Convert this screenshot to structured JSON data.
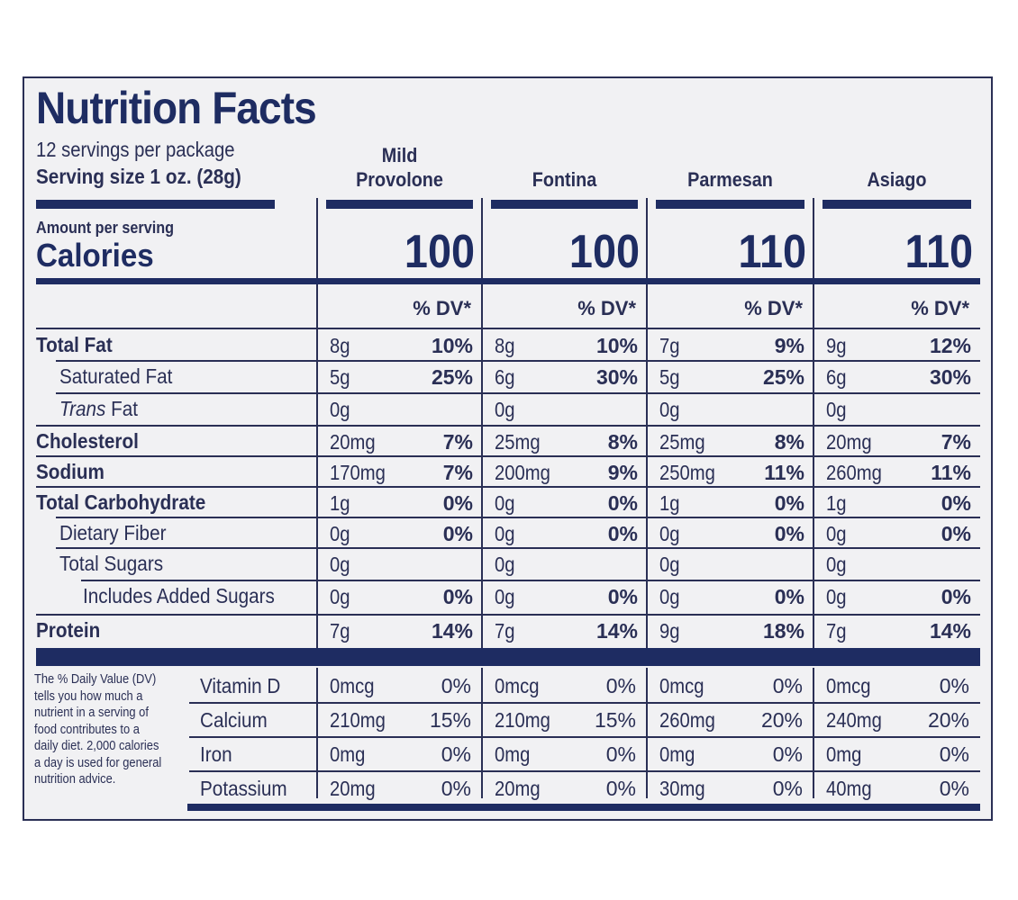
{
  "label": {
    "title": "Nutrition Facts",
    "servings_per_package": "12 servings per package",
    "serving_size": "Serving size 1 oz. (28g)",
    "amount_per_serving": "Amount per serving",
    "calories_label": "Calories",
    "dv_header": "% DV*",
    "colors": {
      "ink": "#1e2c62",
      "background": "#f1f1f3"
    }
  },
  "products": [
    {
      "name_line1": "Mild",
      "name_line2": "Provolone",
      "calories": "100"
    },
    {
      "name_line1": "",
      "name_line2": "Fontina",
      "calories": "100"
    },
    {
      "name_line1": "",
      "name_line2": "Parmesan",
      "calories": "110"
    },
    {
      "name_line1": "",
      "name_line2": "Asiago",
      "calories": "110"
    }
  ],
  "nutrients": [
    {
      "label": "Total Fat",
      "italic_prefix": "",
      "values": [
        [
          "8g",
          "10%"
        ],
        [
          "8g",
          "10%"
        ],
        [
          "7g",
          "9%"
        ],
        [
          "9g",
          "12%"
        ]
      ]
    },
    {
      "label": "Saturated Fat",
      "italic_prefix": "",
      "values": [
        [
          "5g",
          "25%"
        ],
        [
          "6g",
          "30%"
        ],
        [
          "5g",
          "25%"
        ],
        [
          "6g",
          "30%"
        ]
      ]
    },
    {
      "label": " Fat",
      "italic_prefix": "Trans",
      "values": [
        [
          "0g",
          ""
        ],
        [
          "0g",
          ""
        ],
        [
          "0g",
          ""
        ],
        [
          "0g",
          ""
        ]
      ]
    },
    {
      "label": "Cholesterol",
      "italic_prefix": "",
      "values": [
        [
          "20mg",
          "7%"
        ],
        [
          "25mg",
          "8%"
        ],
        [
          "25mg",
          "8%"
        ],
        [
          "20mg",
          "7%"
        ]
      ]
    },
    {
      "label": "Sodium",
      "italic_prefix": "",
      "values": [
        [
          "170mg",
          "7%"
        ],
        [
          "200mg",
          "9%"
        ],
        [
          "250mg",
          "11%"
        ],
        [
          "260mg",
          "11%"
        ]
      ]
    },
    {
      "label": "Total Carbohydrate",
      "italic_prefix": "",
      "values": [
        [
          "1g",
          "0%"
        ],
        [
          "0g",
          "0%"
        ],
        [
          "1g",
          "0%"
        ],
        [
          "1g",
          "0%"
        ]
      ]
    },
    {
      "label": "Dietary Fiber",
      "italic_prefix": "",
      "values": [
        [
          "0g",
          "0%"
        ],
        [
          "0g",
          "0%"
        ],
        [
          "0g",
          "0%"
        ],
        [
          "0g",
          "0%"
        ]
      ]
    },
    {
      "label": "Total Sugars",
      "italic_prefix": "",
      "values": [
        [
          "0g",
          ""
        ],
        [
          "0g",
          ""
        ],
        [
          "0g",
          ""
        ],
        [
          "0g",
          ""
        ]
      ]
    },
    {
      "label": "Includes Added Sugars",
      "italic_prefix": "",
      "values": [
        [
          "0g",
          "0%"
        ],
        [
          "0g",
          "0%"
        ],
        [
          "0g",
          "0%"
        ],
        [
          "0g",
          "0%"
        ]
      ]
    },
    {
      "label": "Protein",
      "italic_prefix": "",
      "values": [
        [
          "7g",
          "14%"
        ],
        [
          "7g",
          "14%"
        ],
        [
          "9g",
          "18%"
        ],
        [
          "7g",
          "14%"
        ]
      ]
    }
  ],
  "vitamins": [
    {
      "label": "Vitamin D",
      "values": [
        [
          "0mcg",
          "0%"
        ],
        [
          "0mcg",
          "0%"
        ],
        [
          "0mcg",
          "0%"
        ],
        [
          "0mcg",
          "0%"
        ]
      ]
    },
    {
      "label": "Calcium",
      "values": [
        [
          "210mg",
          "15%"
        ],
        [
          "210mg",
          "15%"
        ],
        [
          "260mg",
          "20%"
        ],
        [
          "240mg",
          "20%"
        ]
      ]
    },
    {
      "label": "Iron",
      "values": [
        [
          "0mg",
          "0%"
        ],
        [
          "0mg",
          "0%"
        ],
        [
          "0mg",
          "0%"
        ],
        [
          "0mg",
          "0%"
        ]
      ]
    },
    {
      "label": "Potassium",
      "values": [
        [
          "20mg",
          "0%"
        ],
        [
          "20mg",
          "0%"
        ],
        [
          "30mg",
          "0%"
        ],
        [
          "40mg",
          "0%"
        ]
      ]
    }
  ],
  "footnote": "The % Daily Value (DV) tells you how much a nutrient in a serving of food contributes to a daily diet. 2,000 calories a day is used for general nutrition advice."
}
